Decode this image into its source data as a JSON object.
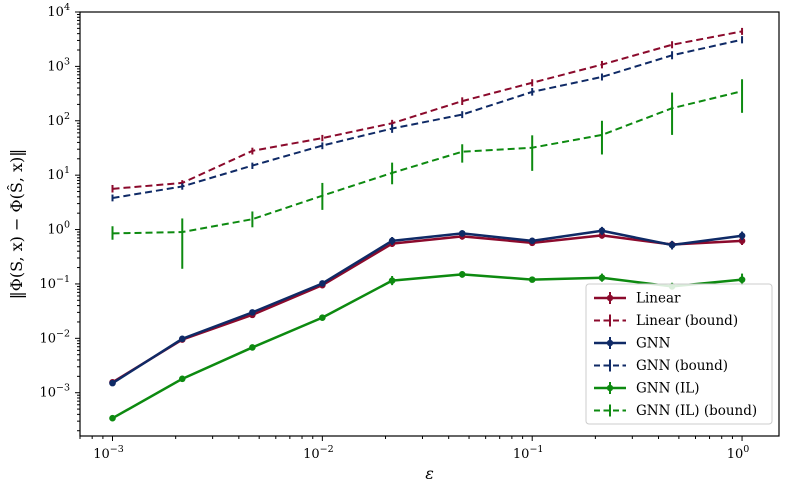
{
  "chart_data": {
    "type": "line",
    "xscale": "log",
    "yscale": "log",
    "xlabel": "ε",
    "ylabel": "‖Φ(S, x) − Φ(Ŝ, x)‖",
    "xlim": [
      0.0007,
      1.5
    ],
    "ylim": [
      0.00016,
      10000
    ],
    "x": [
      0.001,
      0.00215,
      0.00464,
      0.01,
      0.0215,
      0.0464,
      0.1,
      0.215,
      0.464,
      1.0
    ],
    "x_ticks": [
      {
        "value": 0.001,
        "base": "10",
        "exp": "−3"
      },
      {
        "value": 0.01,
        "base": "10",
        "exp": "−2"
      },
      {
        "value": 0.1,
        "base": "10",
        "exp": "−1"
      },
      {
        "value": 1,
        "base": "10",
        "exp": "0"
      }
    ],
    "y_ticks": [
      {
        "value": 0.001,
        "base": "10",
        "exp": "−3"
      },
      {
        "value": 0.01,
        "base": "10",
        "exp": "−2"
      },
      {
        "value": 0.1,
        "base": "10",
        "exp": "−1"
      },
      {
        "value": 1,
        "base": "10",
        "exp": "0"
      },
      {
        "value": 10,
        "base": "10",
        "exp": "1"
      },
      {
        "value": 100,
        "base": "10",
        "exp": "2"
      },
      {
        "value": 1000,
        "base": "10",
        "exp": "3"
      },
      {
        "value": 10000,
        "base": "10",
        "exp": "4"
      }
    ],
    "legend_position": "bottom-right",
    "series": [
      {
        "name": "Linear",
        "color": "#8b0a2c",
        "style": "solid",
        "width": 2.5,
        "marker": true,
        "values": [
          0.00155,
          0.0095,
          0.027,
          0.095,
          0.55,
          0.75,
          0.57,
          0.78,
          0.53,
          0.62
        ],
        "err": [
          [
            0.0014,
            0.0017
          ],
          [
            0.0085,
            0.0107
          ],
          [
            0.025,
            0.03
          ],
          [
            0.088,
            0.104
          ],
          [
            0.48,
            0.63
          ],
          [
            0.65,
            0.86
          ],
          [
            0.5,
            0.65
          ],
          [
            0.68,
            0.9
          ],
          [
            0.45,
            0.6
          ],
          [
            0.52,
            0.74
          ]
        ]
      },
      {
        "name": "Linear (bound)",
        "color": "#8b0a2c",
        "style": "dashed",
        "width": 2,
        "marker": false,
        "values": [
          5.6,
          7.2,
          28,
          48,
          90,
          230,
          500,
          1080,
          2500,
          4400
        ],
        "err": [
          [
            4.8,
            6.6
          ],
          [
            6.4,
            8.1
          ],
          [
            24,
            32
          ],
          [
            42,
            55
          ],
          [
            78,
            104
          ],
          [
            195,
            270
          ],
          [
            430,
            580
          ],
          [
            920,
            1260
          ],
          [
            2150,
            2900
          ],
          [
            3800,
            5100
          ]
        ]
      },
      {
        "name": "GNN",
        "color": "#0f2a66",
        "style": "solid",
        "width": 2.5,
        "marker": true,
        "values": [
          0.0015,
          0.0098,
          0.03,
          0.102,
          0.62,
          0.85,
          0.62,
          0.95,
          0.52,
          0.77
        ],
        "err": [
          [
            0.00138,
            0.00163
          ],
          [
            0.0086,
            0.011
          ],
          [
            0.027,
            0.033
          ],
          [
            0.092,
            0.113
          ],
          [
            0.52,
            0.73
          ],
          [
            0.74,
            0.97
          ],
          [
            0.54,
            0.7
          ],
          [
            0.8,
            1.12
          ],
          [
            0.43,
            0.62
          ],
          [
            0.64,
            0.92
          ]
        ]
      },
      {
        "name": "GNN (bound)",
        "color": "#0f2a66",
        "style": "dashed",
        "width": 2,
        "marker": false,
        "values": [
          3.8,
          6.2,
          15,
          35,
          72,
          130,
          340,
          640,
          1600,
          3100
        ],
        "err": [
          [
            3.3,
            4.4
          ],
          [
            5.4,
            7.1
          ],
          [
            13,
            17
          ],
          [
            30,
            40
          ],
          [
            60,
            86
          ],
          [
            112,
            150
          ],
          [
            290,
            400
          ],
          [
            550,
            740
          ],
          [
            1350,
            1900
          ],
          [
            2650,
            3600
          ]
        ]
      },
      {
        "name": "GNN (IL)",
        "color": "#0d8a10",
        "style": "solid",
        "width": 2.5,
        "marker": true,
        "values": [
          0.00034,
          0.0018,
          0.0068,
          0.024,
          0.115,
          0.15,
          0.12,
          0.13,
          0.09,
          0.12
        ],
        "err": [
          [
            0.00031,
            0.00037
          ],
          [
            0.0017,
            0.0019
          ],
          [
            0.0063,
            0.0073
          ],
          [
            0.022,
            0.026
          ],
          [
            0.095,
            0.14
          ],
          [
            0.13,
            0.17
          ],
          [
            0.11,
            0.13
          ],
          [
            0.11,
            0.155
          ],
          [
            0.08,
            0.105
          ],
          [
            0.095,
            0.155
          ]
        ]
      },
      {
        "name": "GNN (IL) (bound)",
        "color": "#0d8a10",
        "style": "dashed",
        "width": 2,
        "marker": false,
        "values": [
          0.85,
          0.9,
          1.55,
          4.2,
          11,
          27,
          32,
          55,
          170,
          350
        ],
        "err": [
          [
            0.65,
            1.15
          ],
          [
            0.19,
            1.6
          ],
          [
            1.1,
            2.15
          ],
          [
            2.3,
            7.2
          ],
          [
            6.8,
            17
          ],
          [
            17,
            37
          ],
          [
            12,
            54
          ],
          [
            24,
            100
          ],
          [
            55,
            330
          ],
          [
            140,
            580
          ]
        ]
      }
    ]
  }
}
